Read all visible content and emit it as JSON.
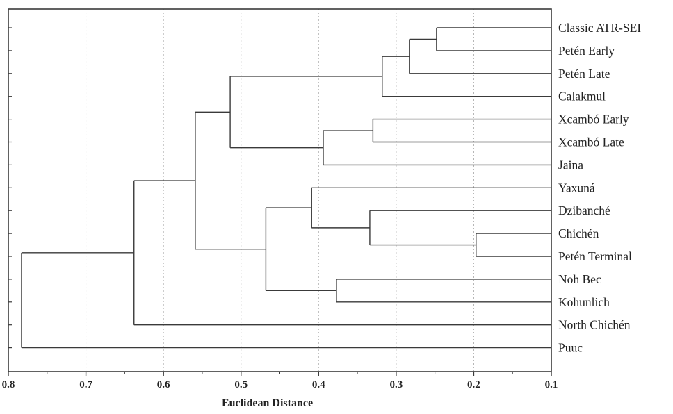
{
  "chart_data": {
    "type": "dendrogram",
    "orientation": "horizontal",
    "xlabel": "Euclidean Distance",
    "x_axis": {
      "min": 0.1,
      "max": 0.8,
      "reversed": true,
      "ticks": [
        0.8,
        0.7,
        0.6,
        0.5,
        0.4,
        0.3,
        0.2,
        0.1
      ],
      "tick_labels": [
        "0.8",
        "0.7",
        "0.6",
        "0.5",
        "0.4",
        "0.3",
        "0.2",
        "0.1"
      ]
    },
    "grid": {
      "vertical": true,
      "style": "dotted"
    },
    "leaves": [
      "Classic ATR-SEI",
      "Petén Early",
      "Petén Late",
      "Calakmul",
      "Xcambó Early",
      "Xcambó Late",
      "Jaina",
      "Yaxuná",
      "Dzibanché",
      "Chichén",
      "Petén Terminal",
      "Noh Bec",
      "Kohunlich",
      "North Chichén",
      "Puuc"
    ],
    "merges": [
      {
        "id": "n1",
        "a": "L0",
        "b": "L1",
        "height": 0.248
      },
      {
        "id": "n2",
        "a": "n1",
        "b": "L2",
        "height": 0.283
      },
      {
        "id": "n3",
        "a": "n2",
        "b": "L3",
        "height": 0.318
      },
      {
        "id": "n4",
        "a": "L4",
        "b": "L5",
        "height": 0.33
      },
      {
        "id": "n5",
        "a": "n4",
        "b": "L6",
        "height": 0.394
      },
      {
        "id": "n6",
        "a": "n3",
        "b": "n5",
        "height": 0.514
      },
      {
        "id": "n7",
        "a": "L9",
        "b": "L10",
        "height": 0.197
      },
      {
        "id": "n8",
        "a": "L8",
        "b": "n7",
        "height": 0.334
      },
      {
        "id": "n9",
        "a": "L7",
        "b": "n8",
        "height": 0.409
      },
      {
        "id": "n10",
        "a": "L11",
        "b": "L12",
        "height": 0.377
      },
      {
        "id": "n11",
        "a": "n9",
        "b": "n10",
        "height": 0.468
      },
      {
        "id": "n12",
        "a": "n6",
        "b": "n11",
        "height": 0.559
      },
      {
        "id": "n13",
        "a": "n12",
        "b": "L13",
        "height": 0.638
      },
      {
        "id": "n14",
        "a": "n13",
        "b": "L14",
        "height": 0.783
      }
    ],
    "colors": {
      "line": "#3a3a3a",
      "grid": "#b0b0b0",
      "text": "#222222"
    }
  }
}
